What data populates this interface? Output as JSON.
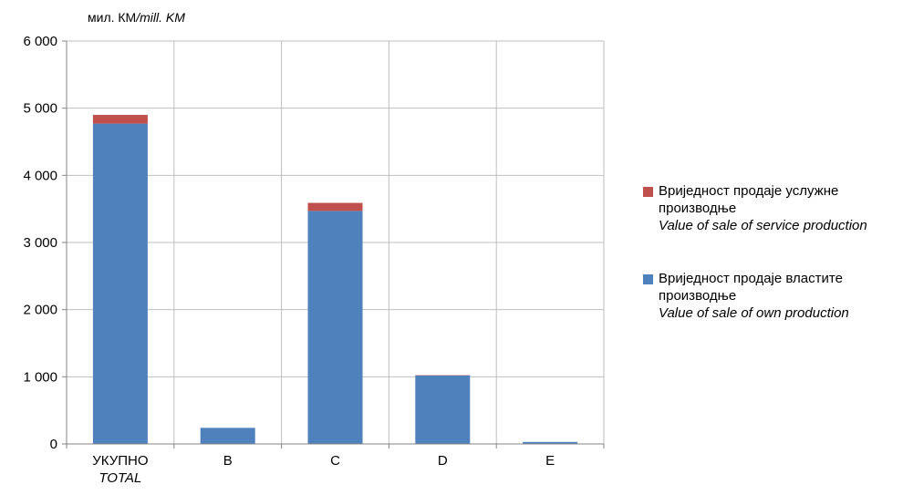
{
  "chart_data": {
    "type": "bar",
    "stacked": true,
    "unit": "мил. КМ",
    "unit_en": "mill. KM",
    "categories": [
      "УКУПНО",
      "B",
      "C",
      "D",
      "E"
    ],
    "categories_en": [
      "TOTAL",
      "",
      "",
      "",
      ""
    ],
    "series": [
      {
        "name": "Вриједност продаје властите производње",
        "name_en": "Value of sale of own production",
        "color": "#4f81bd",
        "values": [
          4770,
          240,
          3470,
          1020,
          30
        ]
      },
      {
        "name": "Вриједност продаје услужне производње",
        "name_en": "Value of sale of service production",
        "color": "#c0504d",
        "values": [
          130,
          0,
          120,
          5,
          0
        ]
      }
    ],
    "ylim": [
      0,
      6000
    ],
    "yticks": [
      "0",
      "1 000",
      "2 000",
      "3 000",
      "4 000",
      "5 000",
      "6 000"
    ],
    "grid": true,
    "legend_position": "right"
  }
}
